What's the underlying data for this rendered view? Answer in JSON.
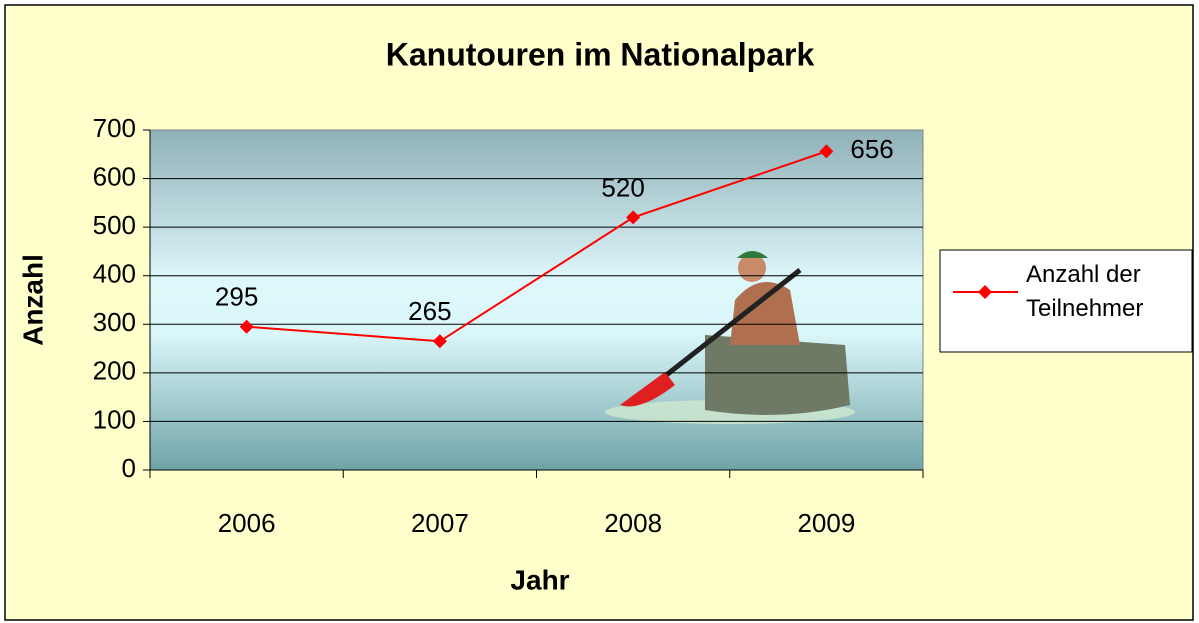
{
  "chart_data": {
    "type": "line",
    "title": "Kanutouren im Nationalpark",
    "x_label": "Jahr",
    "y_label": "Anzahl",
    "categories": [
      "2006",
      "2007",
      "2008",
      "2009"
    ],
    "series": [
      {
        "name": "Anzahl der Teilnehmer",
        "color": "#ff0000",
        "values": [
          295,
          265,
          520,
          656
        ]
      }
    ],
    "ylim": [
      0,
      700
    ],
    "yticks": [
      0,
      100,
      200,
      300,
      400,
      500,
      600,
      700
    ],
    "grid": true,
    "legend": "right"
  }
}
